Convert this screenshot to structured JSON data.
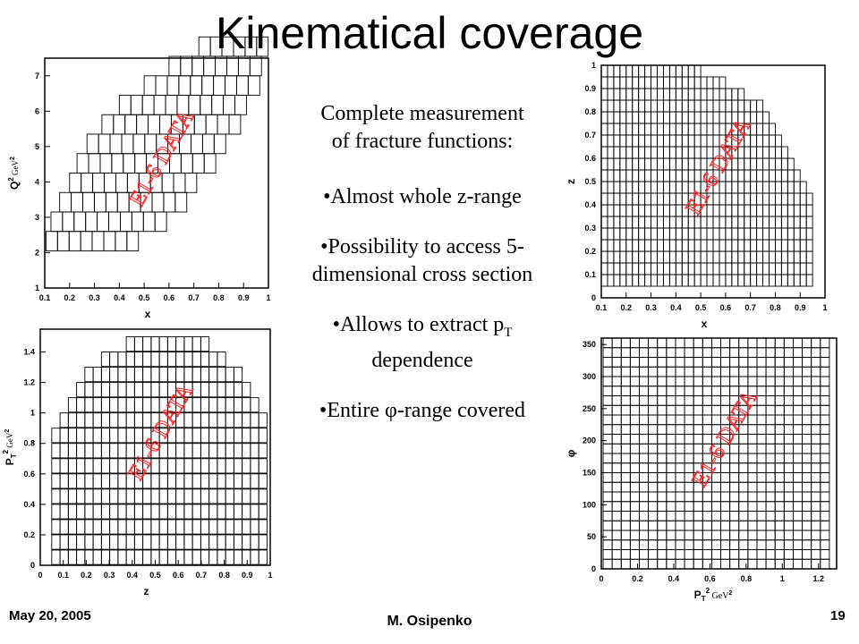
{
  "slide": {
    "title": "Kinematical coverage",
    "center_lines": [
      "Complete measurement",
      "of fracture functions:",
      "•Almost whole z-range",
      "•Possibility to access 5-",
      "dimensional cross section",
      "•Allows to extract p",
      "T",
      "dependence",
      "•Entire φ-range covered"
    ],
    "watermark": "E1-6 DATA",
    "footer": {
      "date": "May 20, 2005",
      "author": "M. Osipenko",
      "page": "19"
    }
  },
  "chart_data": [
    {
      "type": "heatmap",
      "description_panel": "top-left",
      "xlabel": "x",
      "ylabel": "Q",
      "ylabel_sup": "2",
      "yunit": "GeV",
      "xlim": [
        0.1,
        1
      ],
      "ylim": [
        1,
        7.5
      ],
      "xticks": [
        "0.1",
        "0.2",
        "0.3",
        "0.4",
        "0.5",
        "0.6",
        "0.7",
        "0.8",
        "0.9",
        "1"
      ],
      "yticks": [
        "1",
        "2",
        "3",
        "4",
        "5",
        "6",
        "7"
      ],
      "annotation": "E1-6 DATA"
    },
    {
      "type": "heatmap",
      "description_panel": "top-right",
      "xlabel": "x",
      "ylabel": "z",
      "xlim": [
        0.1,
        1
      ],
      "ylim": [
        0,
        1
      ],
      "xticks": [
        "0.1",
        "0.2",
        "0.3",
        "0.4",
        "0.5",
        "0.6",
        "0.7",
        "0.8",
        "0.9",
        "1"
      ],
      "yticks": [
        "0",
        "0.1",
        "0.2",
        "0.3",
        "0.4",
        "0.5",
        "0.6",
        "0.7",
        "0.8",
        "0.9",
        "1"
      ],
      "annotation": "E1-6 DATA"
    },
    {
      "type": "heatmap",
      "description_panel": "bottom-left",
      "xlabel": "z",
      "ylabel": "P",
      "ylabel_sub": "T",
      "ylabel_sup": "2",
      "yunit": "GeV",
      "xlim": [
        0,
        1
      ],
      "ylim": [
        0,
        1.55
      ],
      "xticks": [
        "0",
        "0.1",
        "0.2",
        "0.3",
        "0.4",
        "0.5",
        "0.6",
        "0.7",
        "0.8",
        "0.9",
        "1"
      ],
      "yticks": [
        "0",
        "0.2",
        "0.4",
        "0.6",
        "0.8",
        "1",
        "1.2",
        "1.4"
      ],
      "annotation": "E1-6 DATA"
    },
    {
      "type": "heatmap",
      "description_panel": "bottom-right",
      "xlabel": "P",
      "xlabel_sub": "T",
      "xlabel_sup": "2",
      "xunit": "GeV",
      "ylabel": "φ",
      "xlim": [
        0,
        1.3
      ],
      "ylim": [
        0,
        360
      ],
      "xticks": [
        "0",
        "0.2",
        "0.4",
        "0.6",
        "0.8",
        "1",
        "1.2"
      ],
      "yticks": [
        "0",
        "50",
        "100",
        "150",
        "200",
        "250",
        "300",
        "350"
      ],
      "annotation": "E1-6 DATA"
    }
  ]
}
